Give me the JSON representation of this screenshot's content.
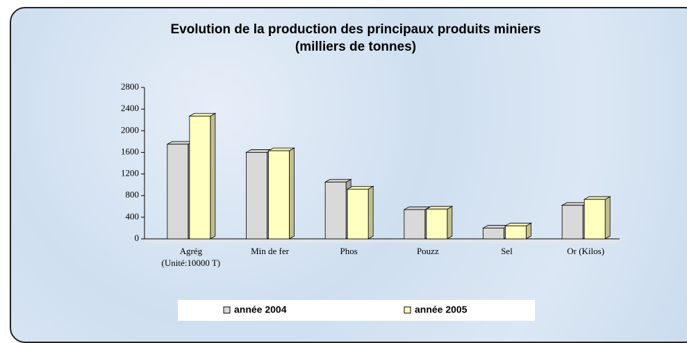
{
  "chart_data": {
    "type": "bar3d",
    "title": [
      "Evolution de la production des principaux produits miniers",
      "(milliers de tonnes)"
    ],
    "categories": [
      "Agrég (Unité:10000 T)",
      "Min de fer",
      "Phos",
      "Pouzz",
      "Sel",
      "Or (Kilos)"
    ],
    "series": [
      {
        "name": "année 2004",
        "color": "#d9d9d9",
        "values": [
          1750,
          1600,
          1050,
          540,
          200,
          620
        ]
      },
      {
        "name": "année 2005",
        "color": "#ffffc0",
        "values": [
          2270,
          1630,
          920,
          550,
          240,
          730
        ]
      }
    ],
    "ylim": [
      0,
      2800
    ],
    "yticks": [
      0,
      400,
      800,
      1200,
      1600,
      2000,
      2400,
      2800
    ],
    "legend": "bottom"
  }
}
